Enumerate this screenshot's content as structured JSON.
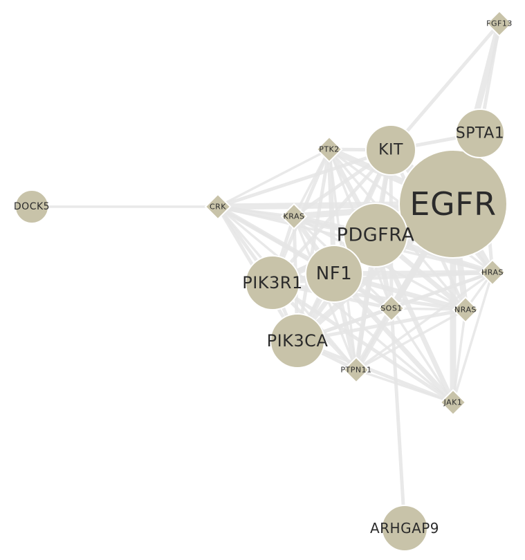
{
  "colors": {
    "node_fill": "#c8c3a9",
    "node_stroke": "#ffffff",
    "edge": "#e5e5e5",
    "label": "#2b2b2b",
    "background": "#ffffff"
  },
  "nodes": [
    {
      "id": "EGFR",
      "shape": "circle"
    },
    {
      "id": "PDGFRA",
      "shape": "circle"
    },
    {
      "id": "NF1",
      "shape": "circle"
    },
    {
      "id": "PIK3R1",
      "shape": "circle"
    },
    {
      "id": "PIK3CA",
      "shape": "circle"
    },
    {
      "id": "KIT",
      "shape": "circle"
    },
    {
      "id": "SPTA1",
      "shape": "circle"
    },
    {
      "id": "DOCK5",
      "shape": "circle"
    },
    {
      "id": "ARHGAP9",
      "shape": "circle"
    },
    {
      "id": "FGF13",
      "shape": "diamond"
    },
    {
      "id": "PTK2",
      "shape": "diamond"
    },
    {
      "id": "CRK",
      "shape": "diamond"
    },
    {
      "id": "KRAS",
      "shape": "diamond"
    },
    {
      "id": "HRAS",
      "shape": "diamond"
    },
    {
      "id": "NRAS",
      "shape": "diamond"
    },
    {
      "id": "SOS1",
      "shape": "diamond"
    },
    {
      "id": "PTPN11",
      "shape": "diamond"
    },
    {
      "id": "JAK1",
      "shape": "diamond"
    }
  ],
  "edges": [
    [
      "FGF13",
      "KIT"
    ],
    [
      "FGF13",
      "SPTA1"
    ],
    [
      "FGF13",
      "EGFR"
    ],
    [
      "DOCK5",
      "CRK"
    ],
    [
      "ARHGAP9",
      "SOS1"
    ],
    [
      "PTK2",
      "KIT"
    ],
    [
      "PTK2",
      "EGFR"
    ],
    [
      "PTK2",
      "PDGFRA"
    ],
    [
      "PTK2",
      "NF1"
    ],
    [
      "PTK2",
      "PIK3R1"
    ],
    [
      "PTK2",
      "PIK3CA"
    ],
    [
      "PTK2",
      "CRK"
    ],
    [
      "PTK2",
      "SOS1"
    ],
    [
      "PTK2",
      "HRAS"
    ],
    [
      "PTK2",
      "KRAS"
    ],
    [
      "PTK2",
      "PTPN11"
    ],
    [
      "PTK2",
      "NRAS"
    ],
    [
      "CRK",
      "EGFR"
    ],
    [
      "CRK",
      "PDGFRA"
    ],
    [
      "CRK",
      "PIK3R1"
    ],
    [
      "CRK",
      "PIK3CA"
    ],
    [
      "CRK",
      "NF1"
    ],
    [
      "CRK",
      "KIT"
    ],
    [
      "CRK",
      "KRAS"
    ],
    [
      "CRK",
      "PTPN11"
    ],
    [
      "CRK",
      "SOS1"
    ],
    [
      "CRK",
      "HRAS"
    ],
    [
      "CRK",
      "JAK1"
    ],
    [
      "KRAS",
      "EGFR"
    ],
    [
      "KRAS",
      "PDGFRA"
    ],
    [
      "KRAS",
      "NF1"
    ],
    [
      "KRAS",
      "PIK3R1"
    ],
    [
      "KRAS",
      "PIK3CA"
    ],
    [
      "KRAS",
      "SOS1"
    ],
    [
      "KRAS",
      "KIT"
    ],
    [
      "KRAS",
      "HRAS"
    ],
    [
      "KRAS",
      "PTPN11"
    ],
    [
      "KRAS",
      "NRAS"
    ],
    [
      "KIT",
      "EGFR"
    ],
    [
      "KIT",
      "SPTA1"
    ],
    [
      "KIT",
      "PDGFRA"
    ],
    [
      "KIT",
      "NF1"
    ],
    [
      "KIT",
      "PIK3R1"
    ],
    [
      "KIT",
      "PIK3CA"
    ],
    [
      "KIT",
      "SOS1"
    ],
    [
      "KIT",
      "HRAS"
    ],
    [
      "KIT",
      "PTPN11"
    ],
    [
      "KIT",
      "NRAS"
    ],
    [
      "SPTA1",
      "EGFR"
    ],
    [
      "SPTA1",
      "HRAS"
    ],
    [
      "EGFR",
      "PDGFRA"
    ],
    [
      "EGFR",
      "NF1"
    ],
    [
      "EGFR",
      "PIK3R1"
    ],
    [
      "EGFR",
      "PIK3CA"
    ],
    [
      "EGFR",
      "SOS1"
    ],
    [
      "EGFR",
      "HRAS"
    ],
    [
      "EGFR",
      "NRAS"
    ],
    [
      "EGFR",
      "PTPN11"
    ],
    [
      "EGFR",
      "JAK1"
    ],
    [
      "PDGFRA",
      "NF1"
    ],
    [
      "PDGFRA",
      "PIK3R1"
    ],
    [
      "PDGFRA",
      "PIK3CA"
    ],
    [
      "PDGFRA",
      "SOS1"
    ],
    [
      "PDGFRA",
      "HRAS"
    ],
    [
      "PDGFRA",
      "NRAS"
    ],
    [
      "PDGFRA",
      "PTPN11"
    ],
    [
      "PDGFRA",
      "JAK1"
    ],
    [
      "NF1",
      "PIK3R1"
    ],
    [
      "NF1",
      "PIK3CA"
    ],
    [
      "NF1",
      "SOS1"
    ],
    [
      "NF1",
      "HRAS"
    ],
    [
      "NF1",
      "NRAS"
    ],
    [
      "NF1",
      "PTPN11"
    ],
    [
      "NF1",
      "JAK1"
    ],
    [
      "PIK3R1",
      "PIK3CA"
    ],
    [
      "PIK3R1",
      "SOS1"
    ],
    [
      "PIK3R1",
      "HRAS"
    ],
    [
      "PIK3R1",
      "PTPN11"
    ],
    [
      "PIK3R1",
      "JAK1"
    ],
    [
      "PIK3R1",
      "NRAS"
    ],
    [
      "PIK3CA",
      "SOS1"
    ],
    [
      "PIK3CA",
      "PTPN11"
    ],
    [
      "PIK3CA",
      "HRAS"
    ],
    [
      "PIK3CA",
      "JAK1"
    ],
    [
      "PIK3CA",
      "NRAS"
    ],
    [
      "SOS1",
      "HRAS"
    ],
    [
      "SOS1",
      "NRAS"
    ],
    [
      "SOS1",
      "PTPN11"
    ],
    [
      "SOS1",
      "JAK1"
    ],
    [
      "HRAS",
      "NRAS"
    ],
    [
      "HRAS",
      "JAK1"
    ],
    [
      "HRAS",
      "PTPN11"
    ],
    [
      "NRAS",
      "JAK1"
    ],
    [
      "NRAS",
      "PTPN11"
    ],
    [
      "PTPN11",
      "JAK1"
    ]
  ]
}
